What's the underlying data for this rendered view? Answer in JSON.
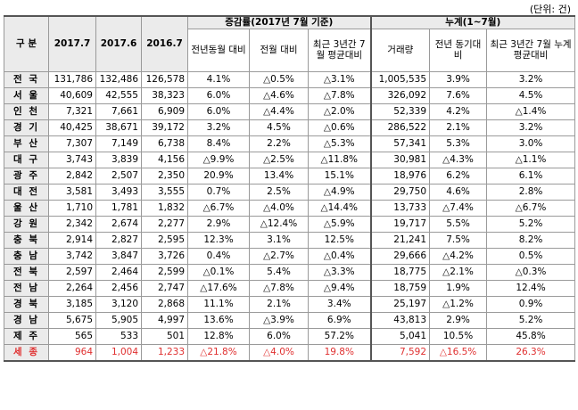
{
  "unit_label": "(단위: 건)",
  "headers": {
    "region": "구 분",
    "c2017_7": "2017.7",
    "c2017_6": "2017.6",
    "c2016_7": "2016.7",
    "rate_group": "증감률(2017년 7월 기준)",
    "rate_yoy": "전년동월 대비",
    "rate_mom": "전월 대비",
    "rate_3yr": "최근 3년간 7월 평균대비",
    "cum_group": "누계(1~7월)",
    "cum_volume": "거래량",
    "cum_yoy": "전년 동기대비",
    "cum_3yr": "최근 3년간 7월 누계평균대비"
  },
  "rows": [
    {
      "region": "전 국",
      "v1": "131,786",
      "v2": "132,486",
      "v3": "126,578",
      "r1": "4.1%",
      "r2": "△0.5%",
      "r3": "△3.1%",
      "c1": "1,005,535",
      "c2": "3.9%",
      "c3": "3.2%"
    },
    {
      "region": "서 울",
      "v1": "40,609",
      "v2": "42,555",
      "v3": "38,323",
      "r1": "6.0%",
      "r2": "△4.6%",
      "r3": "△7.8%",
      "c1": "326,092",
      "c2": "7.6%",
      "c3": "4.5%"
    },
    {
      "region": "인 천",
      "v1": "7,321",
      "v2": "7,661",
      "v3": "6,909",
      "r1": "6.0%",
      "r2": "△4.4%",
      "r3": "△2.0%",
      "c1": "52,339",
      "c2": "4.2%",
      "c3": "△1.4%"
    },
    {
      "region": "경 기",
      "v1": "40,425",
      "v2": "38,671",
      "v3": "39,172",
      "r1": "3.2%",
      "r2": "4.5%",
      "r3": "△0.6%",
      "c1": "286,522",
      "c2": "2.1%",
      "c3": "3.2%"
    },
    {
      "region": "부 산",
      "v1": "7,307",
      "v2": "7,149",
      "v3": "6,738",
      "r1": "8.4%",
      "r2": "2.2%",
      "r3": "△5.3%",
      "c1": "57,341",
      "c2": "5.3%",
      "c3": "3.0%"
    },
    {
      "region": "대 구",
      "v1": "3,743",
      "v2": "3,839",
      "v3": "4,156",
      "r1": "△9.9%",
      "r2": "△2.5%",
      "r3": "△11.8%",
      "c1": "30,981",
      "c2": "△4.3%",
      "c3": "△1.1%"
    },
    {
      "region": "광 주",
      "v1": "2,842",
      "v2": "2,507",
      "v3": "2,350",
      "r1": "20.9%",
      "r2": "13.4%",
      "r3": "15.1%",
      "c1": "18,976",
      "c2": "6.2%",
      "c3": "6.1%"
    },
    {
      "region": "대 전",
      "v1": "3,581",
      "v2": "3,493",
      "v3": "3,555",
      "r1": "0.7%",
      "r2": "2.5%",
      "r3": "△4.9%",
      "c1": "29,750",
      "c2": "4.6%",
      "c3": "2.8%"
    },
    {
      "region": "울 산",
      "v1": "1,710",
      "v2": "1,781",
      "v3": "1,832",
      "r1": "△6.7%",
      "r2": "△4.0%",
      "r3": "△14.4%",
      "c1": "13,733",
      "c2": "△7.4%",
      "c3": "△6.7%"
    },
    {
      "region": "강 원",
      "v1": "2,342",
      "v2": "2,674",
      "v3": "2,277",
      "r1": "2.9%",
      "r2": "△12.4%",
      "r3": "△5.9%",
      "c1": "19,717",
      "c2": "5.5%",
      "c3": "5.2%"
    },
    {
      "region": "충 북",
      "v1": "2,914",
      "v2": "2,827",
      "v3": "2,595",
      "r1": "12.3%",
      "r2": "3.1%",
      "r3": "12.5%",
      "c1": "21,241",
      "c2": "7.5%",
      "c3": "8.2%"
    },
    {
      "region": "충 남",
      "v1": "3,742",
      "v2": "3,847",
      "v3": "3,726",
      "r1": "0.4%",
      "r2": "△2.7%",
      "r3": "△0.4%",
      "c1": "29,666",
      "c2": "△4.2%",
      "c3": "0.5%"
    },
    {
      "region": "전 북",
      "v1": "2,597",
      "v2": "2,464",
      "v3": "2,599",
      "r1": "△0.1%",
      "r2": "5.4%",
      "r3": "△3.3%",
      "c1": "18,775",
      "c2": "△2.1%",
      "c3": "△0.3%"
    },
    {
      "region": "전 남",
      "v1": "2,264",
      "v2": "2,456",
      "v3": "2,747",
      "r1": "△17.6%",
      "r2": "△7.8%",
      "r3": "△9.4%",
      "c1": "18,759",
      "c2": "1.9%",
      "c3": "12.4%"
    },
    {
      "region": "경 북",
      "v1": "3,185",
      "v2": "3,120",
      "v3": "2,868",
      "r1": "11.1%",
      "r2": "2.1%",
      "r3": "3.4%",
      "c1": "25,197",
      "c2": "△1.2%",
      "c3": "0.9%"
    },
    {
      "region": "경 남",
      "v1": "5,675",
      "v2": "5,905",
      "v3": "4,997",
      "r1": "13.6%",
      "r2": "△3.9%",
      "r3": "6.9%",
      "c1": "43,813",
      "c2": "2.9%",
      "c3": "5.2%"
    },
    {
      "region": "제 주",
      "v1": "565",
      "v2": "533",
      "v3": "501",
      "r1": "12.8%",
      "r2": "6.0%",
      "r3": "57.2%",
      "c1": "5,041",
      "c2": "10.5%",
      "c3": "45.8%"
    },
    {
      "region": "세 종",
      "v1": "964",
      "v2": "1,004",
      "v3": "1,233",
      "r1": "△21.8%",
      "r2": "△4.0%",
      "r3": "19.8%",
      "c1": "7,592",
      "c2": "△16.5%",
      "c3": "26.3%"
    }
  ],
  "highlight_color": "#e03030"
}
